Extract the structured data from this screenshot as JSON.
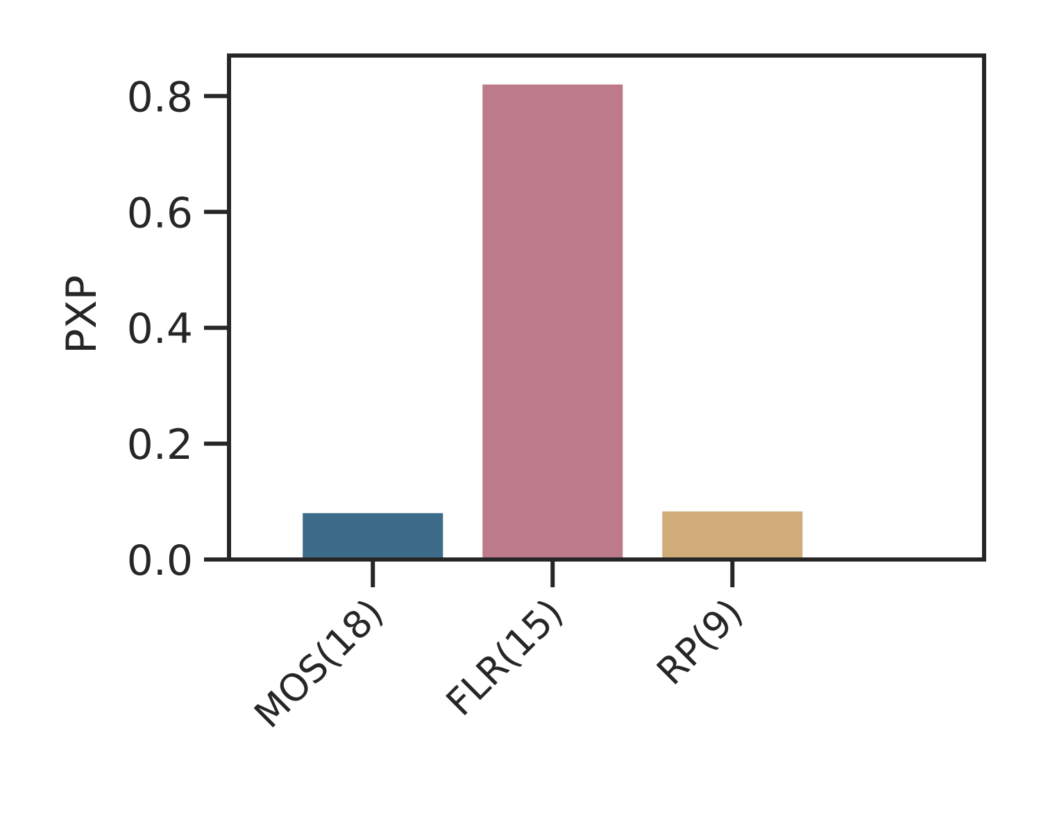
{
  "chart_data": {
    "type": "bar",
    "title": "",
    "xlabel": "",
    "ylabel": "PXP",
    "categories": [
      "MOS(18)",
      "FLR(15)",
      "RP(9)"
    ],
    "values": [
      0.08,
      0.82,
      0.083
    ],
    "colors": [
      "#3d6b8a",
      "#bc7a8a",
      "#cfac79"
    ],
    "ylim": [
      0,
      0.87
    ],
    "yticks": [
      0.0,
      0.2,
      0.4,
      0.6,
      0.8
    ],
    "ytick_labels": [
      "0.0",
      "0.2",
      "0.4",
      "0.6",
      "0.8"
    ],
    "grid": false,
    "axis_color": "#262626"
  }
}
